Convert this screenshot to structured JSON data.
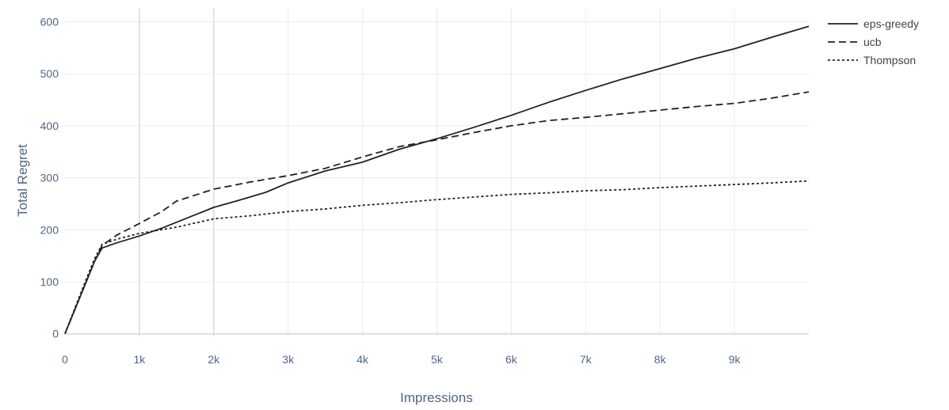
{
  "chart_data": {
    "type": "line",
    "title": "",
    "xlabel": "Impressions",
    "ylabel": "Total Regret",
    "xlim": [
      0,
      10000
    ],
    "ylim": [
      -5,
      625
    ],
    "grid": true,
    "legend_position": "top-right",
    "x_ticks": [
      {
        "value": 0,
        "label": "0"
      },
      {
        "value": 1000,
        "label": "1k"
      },
      {
        "value": 2000,
        "label": "2k"
      },
      {
        "value": 3000,
        "label": "3k"
      },
      {
        "value": 4000,
        "label": "4k"
      },
      {
        "value": 5000,
        "label": "5k"
      },
      {
        "value": 6000,
        "label": "6k"
      },
      {
        "value": 7000,
        "label": "7k"
      },
      {
        "value": 8000,
        "label": "8k"
      },
      {
        "value": 9000,
        "label": "9k"
      }
    ],
    "y_ticks": [
      {
        "value": 0,
        "label": "0"
      },
      {
        "value": 100,
        "label": "100"
      },
      {
        "value": 200,
        "label": "200"
      },
      {
        "value": 300,
        "label": "300"
      },
      {
        "value": 400,
        "label": "400"
      },
      {
        "value": 500,
        "label": "500"
      },
      {
        "value": 600,
        "label": "600"
      }
    ],
    "series": [
      {
        "name": "eps-greedy",
        "color": "#222222",
        "dash": "solid",
        "x": [
          0,
          100,
          200,
          300,
          400,
          500,
          700,
          1000,
          1300,
          1600,
          2000,
          2300,
          2700,
          3000,
          3500,
          4000,
          4500,
          5000,
          5500,
          6000,
          6500,
          7000,
          7500,
          8000,
          8500,
          9000,
          9500,
          10000
        ],
        "y": [
          0,
          35,
          70,
          105,
          140,
          165,
          175,
          188,
          203,
          220,
          243,
          255,
          272,
          290,
          313,
          330,
          355,
          375,
          397,
          420,
          445,
          468,
          490,
          510,
          530,
          548,
          570,
          591
        ]
      },
      {
        "name": "ucb",
        "color": "#222222",
        "dash": "dashed",
        "x": [
          0,
          100,
          200,
          300,
          400,
          500,
          700,
          1000,
          1300,
          1500,
          2000,
          2500,
          3000,
          3500,
          4000,
          4500,
          5000,
          5500,
          6000,
          6500,
          7000,
          7500,
          8000,
          8500,
          9000,
          9500,
          10000
        ],
        "y": [
          0,
          35,
          70,
          105,
          140,
          170,
          190,
          212,
          235,
          255,
          278,
          292,
          304,
          318,
          340,
          360,
          373,
          387,
          400,
          410,
          416,
          423,
          430,
          437,
          443,
          453,
          465
        ]
      },
      {
        "name": "Thompson",
        "color": "#222222",
        "dash": "dotted",
        "x": [
          0,
          100,
          200,
          300,
          400,
          500,
          700,
          1000,
          1500,
          2000,
          2500,
          3000,
          3500,
          4000,
          4500,
          5000,
          5500,
          6000,
          6500,
          7000,
          7500,
          8000,
          8500,
          9000,
          9500,
          10000
        ],
        "y": [
          0,
          37,
          74,
          110,
          145,
          172,
          182,
          193,
          205,
          221,
          227,
          235,
          240,
          247,
          252,
          258,
          263,
          268,
          271,
          275,
          277,
          281,
          284,
          287,
          290,
          294
        ]
      }
    ]
  }
}
